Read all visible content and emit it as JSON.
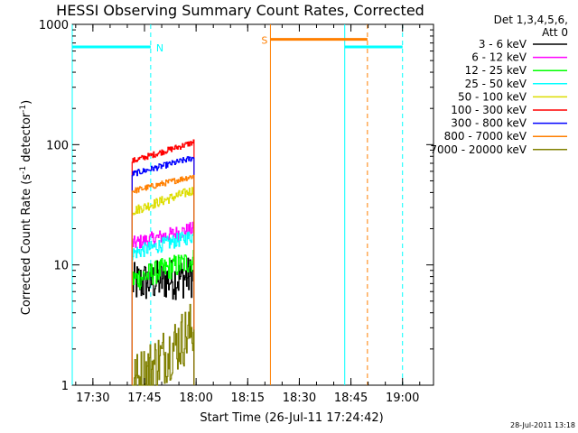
{
  "chart_data": {
    "type": "line",
    "title": "HESSI Observing Summary Count Rates, Corrected",
    "xlabel": "Start Time (26-Jul-11 17:24:42)",
    "ylabel": "Corrected Count Rate (s",
    "ylabel_sup1": "-1",
    "ylabel_mid": " detector",
    "ylabel_sup2": "-1",
    "ylabel_end": ")",
    "y_scale": "log",
    "ylim": [
      1,
      1000
    ],
    "xlim_minutes": [
      17.4,
      19.15
    ],
    "x_ticks": [
      {
        "label": "17:30",
        "h": 17.5
      },
      {
        "label": "17:45",
        "h": 17.75
      },
      {
        "label": "18:00",
        "h": 18.0
      },
      {
        "label": "18:15",
        "h": 18.25
      },
      {
        "label": "18:30",
        "h": 18.5
      },
      {
        "label": "18:45",
        "h": 18.75
      },
      {
        "label": "19:00",
        "h": 19.0
      }
    ],
    "y_ticks": [
      {
        "label": "1",
        "v": 1
      },
      {
        "label": "10",
        "v": 10
      },
      {
        "label": "100",
        "v": 100
      },
      {
        "label": "1000",
        "v": 1000
      }
    ],
    "legend_header": [
      "Det 1,3,4,5,6,",
      "Att 0"
    ],
    "series": [
      {
        "name": "3 - 6 keV",
        "color": "#000000",
        "values_start_end": [
          7.0,
          8.0
        ],
        "noise": 0.35
      },
      {
        "name": "6 - 12 keV",
        "color": "#ff00ff",
        "values_start_end": [
          15.0,
          20.0
        ],
        "noise": 0.12
      },
      {
        "name": "12 - 25 keV",
        "color": "#00ff00",
        "values_start_end": [
          7.5,
          11.0
        ],
        "noise": 0.2
      },
      {
        "name": "25 - 50 keV",
        "color": "#00ffff",
        "values_start_end": [
          12.5,
          17.5
        ],
        "noise": 0.12
      },
      {
        "name": "50 - 100 keV",
        "color": "#dddd00",
        "values_start_end": [
          28.0,
          42.0
        ],
        "noise": 0.08
      },
      {
        "name": "100 - 300 keV",
        "color": "#ff0000",
        "values_start_end": [
          73.0,
          105.0
        ],
        "noise": 0.05
      },
      {
        "name": "300 - 800 keV",
        "color": "#0000ff",
        "values_start_end": [
          57.0,
          78.0
        ],
        "noise": 0.05
      },
      {
        "name": "800 - 7000 keV",
        "color": "#ff7f00",
        "values_start_end": [
          41.0,
          55.0
        ],
        "noise": 0.05
      },
      {
        "name": "7000 - 20000 keV",
        "color": "#808000",
        "values_start_end": [
          1.0,
          3.0
        ],
        "noise": 0.5
      }
    ],
    "data_span_h": [
      17.69,
      17.99
    ],
    "annotations": [
      {
        "label": "N",
        "color": "#00ffff",
        "start_h": 17.4,
        "end_h": 17.78,
        "level": 650
      },
      {
        "label": "",
        "color": "#00ffff",
        "start_h": 18.72,
        "end_h": 19.0,
        "level": 650
      },
      {
        "label": "S",
        "color": "#ff7f00",
        "start_h": 18.36,
        "end_h": 18.83,
        "level": 750
      }
    ],
    "grid": false,
    "legend_placement": "right"
  },
  "footer_date": "28-Jul-2011 13:18"
}
